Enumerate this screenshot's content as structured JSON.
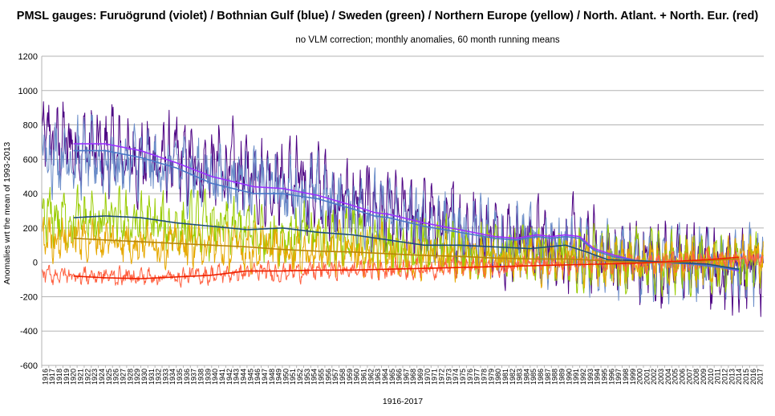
{
  "chart_data": {
    "type": "line",
    "title": "PMSL gauges: Furuögrund (violet) / Bothnian Gulf (blue) / Sweden (green) / Northern Europe (yellow) / North. Atlant. + North. Eur. (red)",
    "subtitle": "no VLM correction; monthly anomalies, 60 month running means",
    "xlabel": "1916-2017",
    "ylabel": "Anomalies wrt the mean of 1993-2013",
    "ylim": [
      -600,
      1200
    ],
    "yticks": [
      -600,
      -400,
      -200,
      0,
      200,
      400,
      600,
      800,
      1000,
      1200
    ],
    "xlim": [
      1916,
      2018
    ],
    "xticks": [
      1916,
      1917,
      1918,
      1919,
      1920,
      1921,
      1922,
      1923,
      1924,
      1925,
      1926,
      1927,
      1928,
      1929,
      1930,
      1931,
      1932,
      1933,
      1934,
      1935,
      1936,
      1937,
      1938,
      1939,
      1940,
      1941,
      1942,
      1943,
      1944,
      1945,
      1946,
      1947,
      1948,
      1949,
      1950,
      1951,
      1952,
      1953,
      1954,
      1955,
      1956,
      1957,
      1958,
      1959,
      1960,
      1961,
      1962,
      1963,
      1964,
      1965,
      1966,
      1967,
      1968,
      1969,
      1970,
      1971,
      1972,
      1973,
      1974,
      1975,
      1976,
      1977,
      1978,
      1979,
      1980,
      1981,
      1982,
      1983,
      1984,
      1985,
      1986,
      1987,
      1988,
      1989,
      1990,
      1991,
      1992,
      1993,
      1994,
      1995,
      1996,
      1997,
      1998,
      1999,
      2000,
      2001,
      2002,
      2003,
      2004,
      2005,
      2006,
      2007,
      2008,
      2009,
      2010,
      2011,
      2012,
      2013,
      2014,
      2015,
      2016,
      2017
    ],
    "grid": true,
    "legend": "none",
    "series": [
      {
        "name": "Furuögrund",
        "color": "#4b0082",
        "monthly_trend": {
          "x": [
            1916,
            1920,
            1925,
            1935,
            1945,
            1955,
            1965,
            1975,
            1985,
            1995,
            2005,
            2017
          ],
          "y": [
            730,
            680,
            640,
            580,
            520,
            420,
            280,
            200,
            140,
            30,
            0,
            -40
          ]
        },
        "monthly_amplitude": 200,
        "running_mean": {
          "color": "#9b30ff",
          "x": [
            1920.5,
            1925,
            1930,
            1935,
            1940,
            1943,
            1946,
            1950,
            1955,
            1960,
            1963,
            1965,
            1970,
            1975,
            1980,
            1983,
            1986,
            1988,
            1990,
            1992,
            1994,
            1997,
            2000,
            2004,
            2008,
            2012,
            2014.5
          ],
          "y": [
            690,
            690,
            650,
            580,
            500,
            470,
            440,
            430,
            390,
            330,
            290,
            280,
            230,
            190,
            150,
            140,
            160,
            150,
            160,
            150,
            80,
            40,
            10,
            0,
            -10,
            -30,
            -50
          ]
        }
      },
      {
        "name": "Bothnian Gulf",
        "color": "#6a8cc8",
        "monthly_trend": {
          "x": [
            1916,
            1920,
            1925,
            1935,
            1945,
            1955,
            1965,
            1975,
            1985,
            1995,
            2005,
            2017
          ],
          "y": [
            660,
            620,
            590,
            540,
            480,
            380,
            260,
            180,
            120,
            20,
            0,
            -40
          ]
        },
        "monthly_amplitude": 170,
        "running_mean": {
          "color": "#4a78c8",
          "x": [
            1920.5,
            1925,
            1930,
            1935,
            1940,
            1943,
            1946,
            1950,
            1955,
            1960,
            1963,
            1965,
            1970,
            1975,
            1980,
            1983,
            1986,
            1988,
            1990,
            1992,
            1994,
            1997,
            2000,
            2004,
            2008,
            2012,
            2014.5
          ],
          "y": [
            650,
            650,
            610,
            550,
            460,
            430,
            400,
            400,
            370,
            310,
            270,
            260,
            210,
            175,
            140,
            130,
            150,
            140,
            150,
            140,
            70,
            30,
            10,
            0,
            -10,
            -30,
            -45
          ]
        }
      },
      {
        "name": "Sweden",
        "color": "#99cc00",
        "monthly_trend": {
          "x": [
            1916,
            1925,
            1935,
            1945,
            1955,
            1965,
            1975,
            1985,
            1995,
            2005,
            2017
          ],
          "y": [
            260,
            240,
            210,
            180,
            150,
            110,
            80,
            50,
            10,
            0,
            -20
          ]
        },
        "monthly_amplitude": 140,
        "running_mean": {
          "color": "#1f4e79",
          "x": [
            1920.5,
            1925,
            1930,
            1935,
            1940,
            1945,
            1950,
            1955,
            1960,
            1965,
            1970,
            1975,
            1980,
            1985,
            1990,
            1993,
            1996,
            2000,
            2005,
            2010,
            2014.5
          ],
          "y": [
            260,
            270,
            260,
            230,
            210,
            190,
            200,
            175,
            160,
            130,
            100,
            100,
            90,
            80,
            100,
            60,
            15,
            10,
            0,
            -10,
            -40
          ]
        }
      },
      {
        "name": "Northern Europe",
        "color": "#e6a800",
        "monthly_trend": {
          "x": [
            1916,
            1925,
            1935,
            1945,
            1955,
            1965,
            1975,
            1985,
            1995,
            2005,
            2017
          ],
          "y": [
            150,
            130,
            110,
            90,
            70,
            50,
            35,
            20,
            5,
            0,
            20
          ]
        },
        "monthly_amplitude": 110,
        "running_mean": {
          "color": "#b8860b",
          "x": [
            1920.5,
            1925,
            1930,
            1935,
            1940,
            1945,
            1950,
            1955,
            1960,
            1965,
            1970,
            1975,
            1980,
            1985,
            1990,
            1995,
            2000,
            2005,
            2010,
            2014.5
          ],
          "y": [
            140,
            130,
            120,
            110,
            100,
            90,
            75,
            65,
            60,
            50,
            40,
            35,
            25,
            20,
            20,
            10,
            0,
            0,
            10,
            20
          ]
        }
      },
      {
        "name": "North. Atlant. + North. Eur.",
        "color": "#ff6040",
        "monthly_trend": {
          "x": [
            1916,
            1925,
            1935,
            1945,
            1955,
            1965,
            1975,
            1985,
            1995,
            2005,
            2017
          ],
          "y": [
            -70,
            -80,
            -85,
            -60,
            -50,
            -40,
            -30,
            -20,
            -10,
            5,
            30
          ]
        },
        "monthly_amplitude": 45,
        "running_mean": {
          "color": "#ee2000",
          "x": [
            1920.5,
            1925,
            1930,
            1935,
            1940,
            1945,
            1950,
            1955,
            1960,
            1965,
            1970,
            1975,
            1980,
            1985,
            1990,
            1995,
            2000,
            2005,
            2010,
            2014.5
          ],
          "y": [
            -80,
            -90,
            -95,
            -85,
            -75,
            -50,
            -50,
            -45,
            -45,
            -40,
            -35,
            -30,
            -25,
            -20,
            -15,
            -10,
            -5,
            5,
            15,
            30
          ]
        }
      }
    ]
  }
}
